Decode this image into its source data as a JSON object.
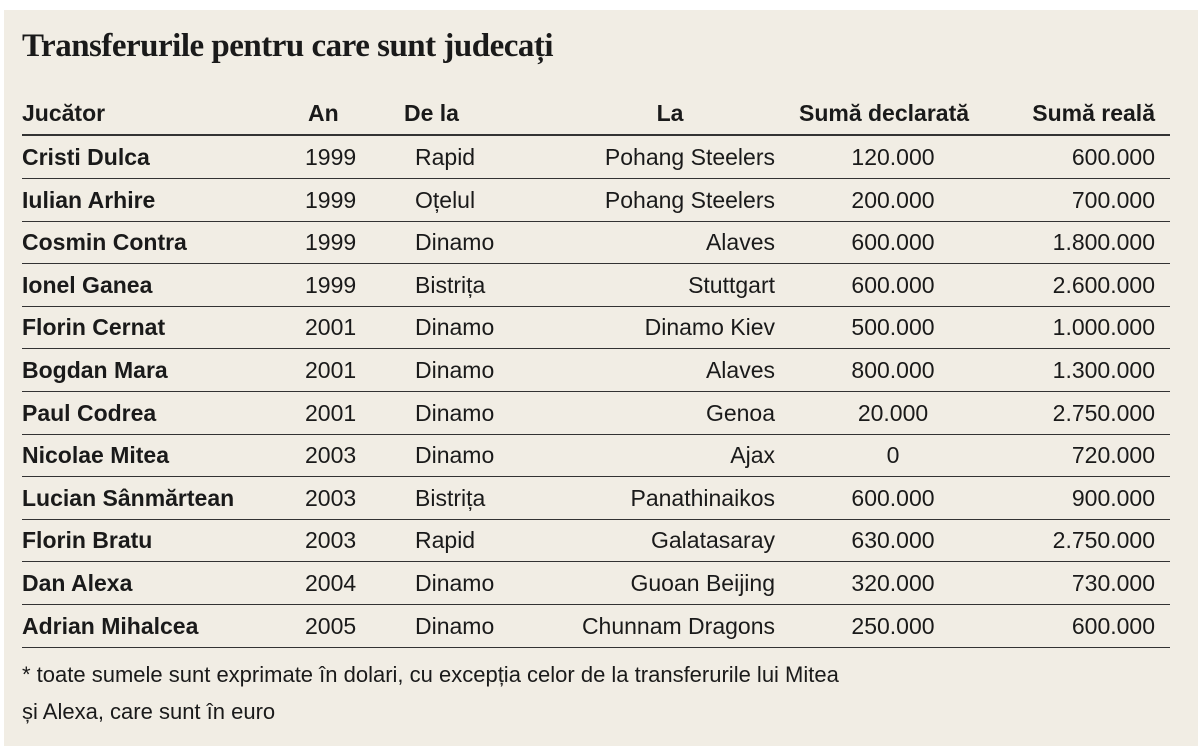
{
  "title": "Transferurile pentru care sunt judecați",
  "table": {
    "columns": [
      "Jucător",
      "An",
      "De la",
      "La",
      "Sumă declarată",
      "Sumă reală"
    ],
    "rows": [
      [
        "Cristi Dulca",
        "1999",
        "Rapid",
        "Pohang Steelers",
        "120.000",
        "600.000"
      ],
      [
        "Iulian Arhire",
        "1999",
        "Oțelul",
        "Pohang Steelers",
        "200.000",
        "700.000"
      ],
      [
        "Cosmin Contra",
        "1999",
        "Dinamo",
        "Alaves",
        "600.000",
        "1.800.000"
      ],
      [
        "Ionel Ganea",
        "1999",
        "Bistrița",
        "Stuttgart",
        "600.000",
        "2.600.000"
      ],
      [
        "Florin Cernat",
        "2001",
        "Dinamo",
        "Dinamo Kiev",
        "500.000",
        "1.000.000"
      ],
      [
        "Bogdan Mara",
        "2001",
        "Dinamo",
        "Alaves",
        "800.000",
        "1.300.000"
      ],
      [
        "Paul Codrea",
        "2001",
        "Dinamo",
        "Genoa",
        "20.000",
        "2.750.000"
      ],
      [
        "Nicolae Mitea",
        "2003",
        "Dinamo",
        "Ajax",
        "0",
        "720.000"
      ],
      [
        "Lucian Sânmărtean",
        "2003",
        "Bistrița",
        "Panathinaikos",
        "600.000",
        "900.000"
      ],
      [
        "Florin Bratu",
        "2003",
        "Rapid",
        "Galatasaray",
        "630.000",
        "2.750.000"
      ],
      [
        "Dan Alexa",
        "2004",
        "Dinamo",
        "Guoan Beijing",
        "320.000",
        "730.000"
      ],
      [
        "Adrian Mihalcea",
        "2005",
        "Dinamo",
        "Chunnam Dragons",
        "250.000",
        "600.000"
      ]
    ]
  },
  "footnote": [
    "* toate sumele sunt exprimate în dolari, cu excepția celor de la transferurile lui Mitea",
    "și Alexa, care sunt în euro"
  ]
}
